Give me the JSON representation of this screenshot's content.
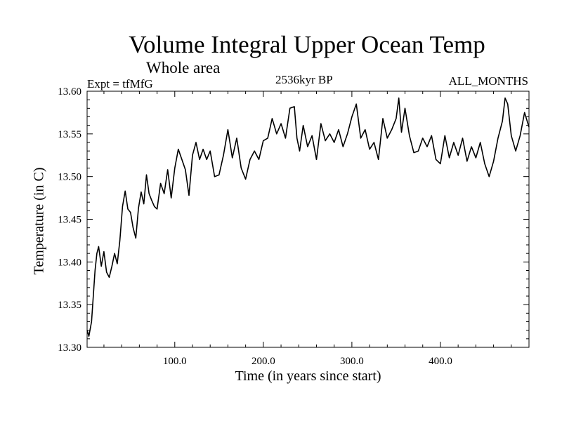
{
  "chart_data": {
    "type": "line",
    "title": "Volume Integral Upper Ocean Temp",
    "subtitle": "Whole area",
    "annotations": {
      "experiment": "Expt = tfMfG",
      "period": "2536kyr BP",
      "months": "ALL_MONTHS"
    },
    "xlabel": "Time (in years since start)",
    "ylabel": "Temperature (in C)",
    "xlim": [
      1,
      500
    ],
    "ylim": [
      13.3,
      13.6
    ],
    "xticks": [
      100,
      200,
      300,
      400
    ],
    "xtick_labels": [
      "100.0",
      "200.0",
      "300.0",
      "400.0"
    ],
    "yticks": [
      13.3,
      13.35,
      13.4,
      13.45,
      13.5,
      13.55,
      13.6
    ],
    "ytick_labels": [
      "13.30",
      "13.35",
      "13.40",
      "13.45",
      "13.50",
      "13.55",
      "13.60"
    ],
    "grid": false,
    "colors": {
      "line": "#000000",
      "axes": "#000000"
    },
    "series": [
      {
        "name": "temperature",
        "x": [
          1,
          3,
          6,
          8,
          10,
          12,
          14,
          17,
          20,
          23,
          26,
          29,
          32,
          35,
          38,
          41,
          44,
          47,
          50,
          53,
          56,
          59,
          62,
          65,
          68,
          71,
          74,
          77,
          80,
          84,
          88,
          92,
          96,
          100,
          104,
          108,
          112,
          116,
          120,
          124,
          128,
          132,
          136,
          140,
          145,
          150,
          155,
          160,
          165,
          170,
          175,
          180,
          185,
          190,
          195,
          200,
          205,
          210,
          215,
          220,
          225,
          230,
          235,
          238,
          241,
          245,
          250,
          255,
          260,
          265,
          270,
          275,
          280,
          285,
          290,
          295,
          300,
          305,
          310,
          315,
          320,
          325,
          330,
          335,
          340,
          345,
          350,
          353,
          356,
          360,
          365,
          370,
          375,
          380,
          385,
          390,
          395,
          400,
          405,
          410,
          415,
          420,
          425,
          430,
          435,
          440,
          445,
          450,
          455,
          460,
          465,
          470,
          473,
          476,
          480,
          485,
          490,
          495,
          500
        ],
        "values": [
          13.32,
          13.313,
          13.33,
          13.36,
          13.39,
          13.41,
          13.418,
          13.395,
          13.412,
          13.388,
          13.382,
          13.395,
          13.41,
          13.398,
          13.425,
          13.465,
          13.483,
          13.462,
          13.458,
          13.44,
          13.428,
          13.463,
          13.482,
          13.468,
          13.502,
          13.48,
          13.472,
          13.465,
          13.462,
          13.492,
          13.48,
          13.508,
          13.475,
          13.51,
          13.532,
          13.52,
          13.508,
          13.478,
          13.525,
          13.54,
          13.52,
          13.532,
          13.52,
          13.53,
          13.5,
          13.502,
          13.525,
          13.555,
          13.522,
          13.545,
          13.51,
          13.497,
          13.52,
          13.53,
          13.52,
          13.542,
          13.545,
          13.568,
          13.55,
          13.562,
          13.545,
          13.58,
          13.582,
          13.545,
          13.53,
          13.56,
          13.535,
          13.548,
          13.52,
          13.562,
          13.542,
          13.55,
          13.54,
          13.555,
          13.535,
          13.55,
          13.57,
          13.585,
          13.545,
          13.555,
          13.532,
          13.54,
          13.52,
          13.568,
          13.545,
          13.555,
          13.568,
          13.592,
          13.552,
          13.58,
          13.548,
          13.528,
          13.53,
          13.545,
          13.535,
          13.548,
          13.52,
          13.515,
          13.548,
          13.522,
          13.54,
          13.525,
          13.545,
          13.518,
          13.535,
          13.522,
          13.54,
          13.515,
          13.5,
          13.518,
          13.545,
          13.565,
          13.592,
          13.585,
          13.548,
          13.53,
          13.548,
          13.575,
          13.558
        ]
      }
    ]
  }
}
